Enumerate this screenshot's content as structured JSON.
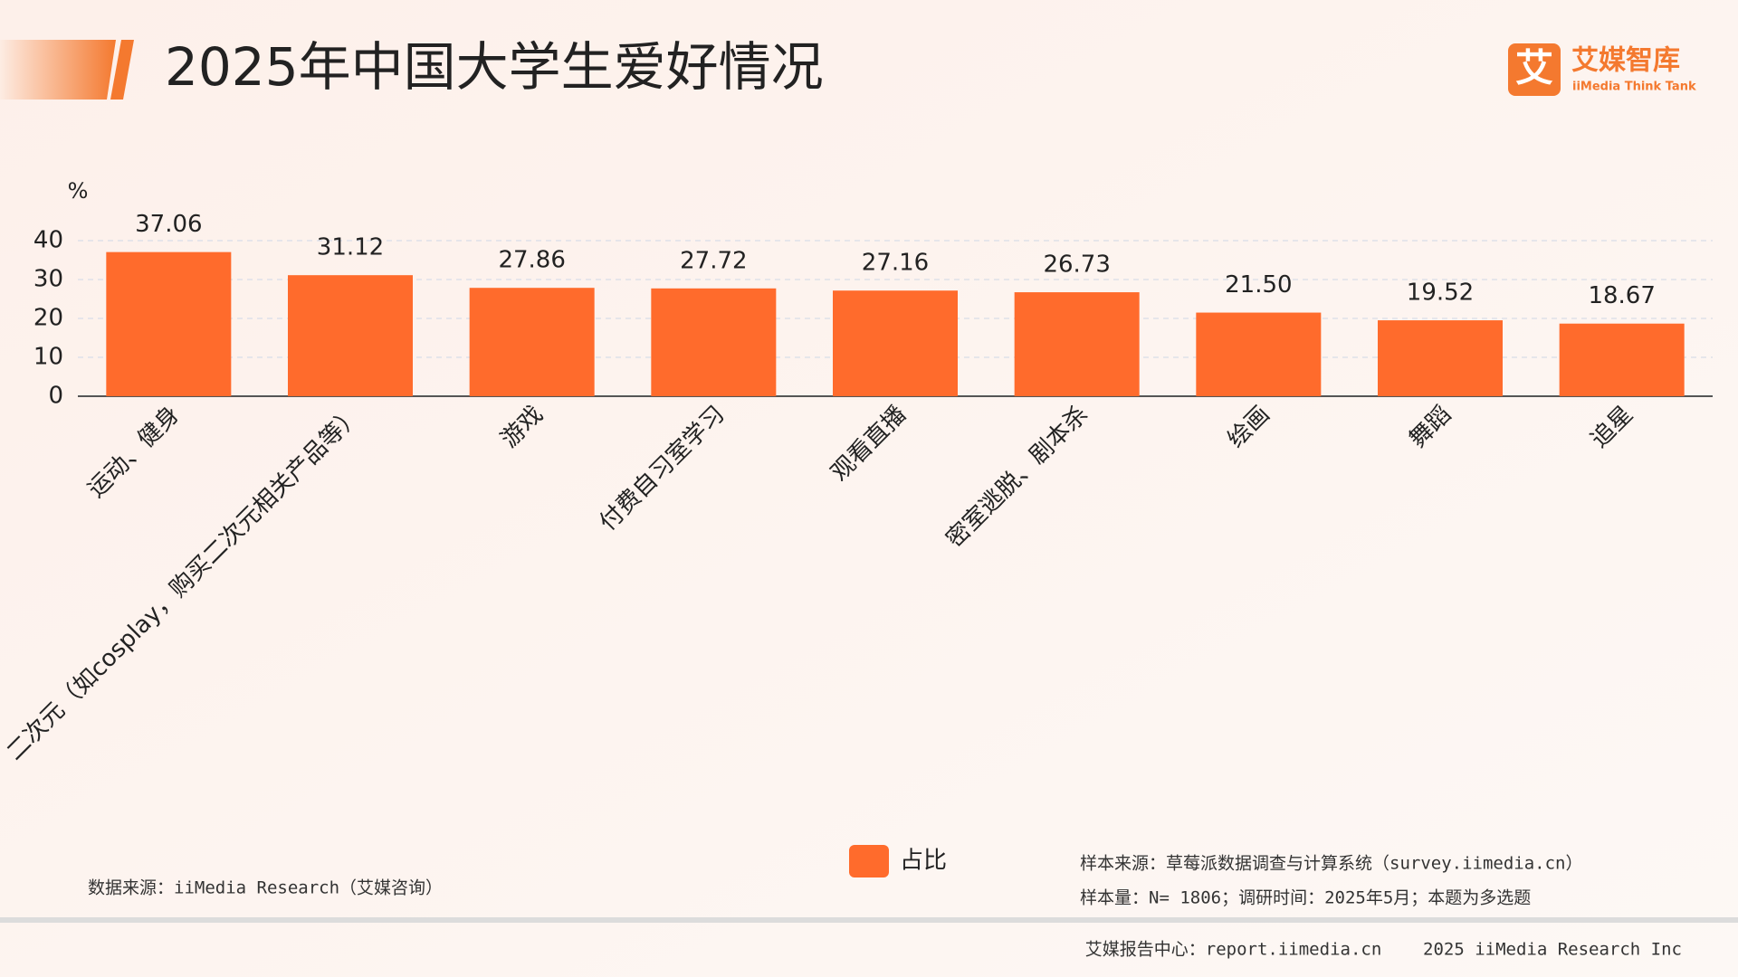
{
  "chart_data": {
    "type": "bar",
    "title": "2025年中国大学生爱好情况",
    "y_label": "%",
    "categories": [
      "运动、健身",
      "二次元（如cosplay，购买二次元相关产品等）",
      "游戏",
      "付费自习室学习",
      "观看直播",
      "密室逃脱、剧本杀",
      "绘画",
      "舞蹈",
      "追星"
    ],
    "series": [
      {
        "name": "占比",
        "color": "#ff6b2c",
        "values": [
          37.06,
          31.12,
          27.86,
          27.72,
          27.16,
          26.73,
          21.5,
          19.52,
          18.67
        ],
        "value_labels": [
          "37.06",
          "31.12",
          "27.86",
          "27.72",
          "27.16",
          "26.73",
          "21.50",
          "19.52",
          "18.67"
        ]
      }
    ],
    "ylim": [
      0,
      40
    ],
    "yticks": [
      0,
      10,
      20,
      30,
      40
    ],
    "grid": true,
    "legend": "bottom"
  },
  "logo": {
    "icon": "艾",
    "name": "艾媒智库",
    "subtitle": "iiMedia Think Tank"
  },
  "notes": {
    "data_source": "数据来源：iiMedia Research（艾媒咨询）",
    "sample_source": "样本来源：草莓派数据调查与计算系统（survey.iimedia.cn）",
    "sample_size": "样本量：N= 1806；调研时间：2025年5月；本题为多选题",
    "footer": "艾媒报告中心：report.iimedia.cn    2025 iiMedia Research Inc"
  }
}
